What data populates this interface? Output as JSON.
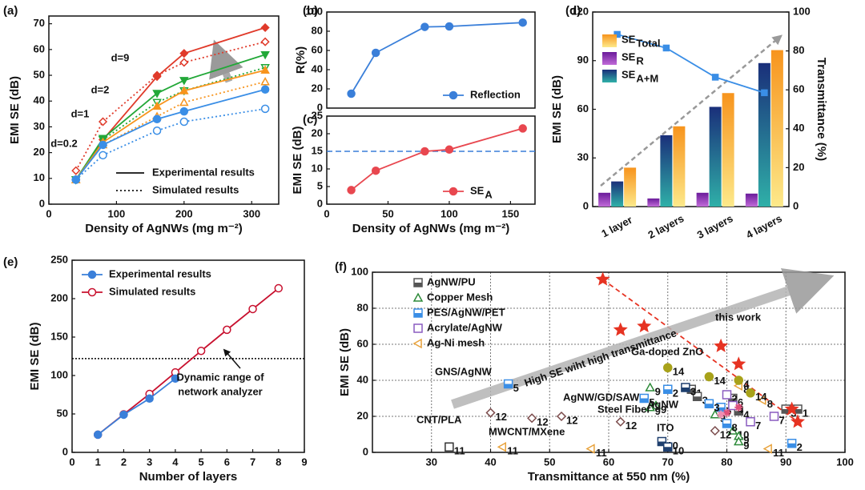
{
  "chart_data": [
    {
      "type": "line",
      "panel_label": "(a)",
      "x_label": "Density of AgNWs (mg m⁻²)",
      "y_label": "EMI SE (dB)",
      "x": [
        40,
        80,
        160,
        200,
        320
      ],
      "xlim": [
        0,
        340
      ],
      "xticks": [
        0,
        100,
        200,
        300
      ],
      "ylim": [
        0,
        73
      ],
      "yticks": [
        0,
        10,
        20,
        30,
        40,
        50,
        60,
        70
      ],
      "legend": [
        "Experimental results",
        "Simulated results"
      ],
      "series": [
        {
          "name": "d=0.2",
          "color": "#3a8ee6",
          "marker": "circle",
          "filled": true,
          "style": "solid",
          "values": [
            9.5,
            23,
            33,
            36,
            44.5
          ]
        },
        {
          "color": "#3a8ee6",
          "marker": "circle",
          "filled": false,
          "style": "dotted",
          "values": [
            9.5,
            19,
            28.5,
            32,
            37
          ]
        },
        {
          "name": "d=1",
          "color": "#f7941d",
          "marker": "triangle",
          "filled": true,
          "style": "solid",
          "values": [
            9.5,
            24,
            38,
            44,
            52
          ]
        },
        {
          "color": "#f7941d",
          "marker": "triangle",
          "filled": false,
          "style": "dotted",
          "values": [
            9.5,
            23,
            34,
            39.5,
            47.5
          ]
        },
        {
          "name": "d=2",
          "color": "#22a838",
          "marker": "triangle-down",
          "filled": true,
          "style": "solid",
          "values": [
            9.5,
            25.5,
            43,
            48,
            58
          ]
        },
        {
          "color": "#22a838",
          "marker": "triangle-down",
          "filled": false,
          "style": "dotted",
          "values": [
            9.5,
            25,
            39.5,
            44,
            53
          ]
        },
        {
          "name": "d=9",
          "color": "#e03a2a",
          "marker": "diamond",
          "filled": true,
          "style": "solid",
          "values": [
            9.5,
            25,
            49.5,
            58.5,
            68.5
          ]
        },
        {
          "color": "#e03a2a",
          "marker": "diamond",
          "filled": false,
          "style": "dotted",
          "values": [
            13,
            32,
            50,
            55,
            63
          ]
        }
      ]
    },
    {
      "type": "line",
      "panel_label": "(b)",
      "y_label": "R(%)",
      "x": [
        20,
        40,
        80,
        100,
        160
      ],
      "xlim": [
        0,
        170
      ],
      "ylim": [
        0,
        100
      ],
      "yticks": [
        0,
        20,
        40,
        60,
        80,
        100
      ],
      "legend_loc": "lower right",
      "series": [
        {
          "name": "Reflection",
          "color": "#3a7fd9",
          "marker": "circle",
          "filled": true,
          "style": "solid",
          "values": [
            15,
            57.5,
            84.5,
            85,
            89
          ]
        }
      ]
    },
    {
      "type": "line",
      "panel_label": "(c)",
      "x_label": "Density of AgNWs (mg m⁻²)",
      "y_label": "EMI SE (dB)",
      "x": [
        20,
        40,
        80,
        100,
        160
      ],
      "xlim": [
        0,
        170
      ],
      "xticks": [
        0,
        50,
        100,
        150
      ],
      "ylim": [
        0,
        25
      ],
      "yticks": [
        0,
        5,
        10,
        15,
        20,
        25
      ],
      "hline": 15,
      "hline_color": "#3a7fd9",
      "hline_style": "dashed",
      "legend_loc": "lower right",
      "series": [
        {
          "name": "SE",
          "name_sub": "A",
          "color": "#e8474f",
          "marker": "circle",
          "filled": true,
          "style": "solid",
          "values": [
            4,
            9.5,
            15,
            15.5,
            21.5
          ]
        }
      ]
    },
    {
      "type": "bar",
      "panel_label": "(d)",
      "y_label": "EMI SE (dB)",
      "y2_label": "Transmittance (%)",
      "y2_color": "#3a8ee6",
      "categories": [
        "1 layer",
        "2 layers",
        "3 layers",
        "4 layers"
      ],
      "ylim": [
        0,
        120
      ],
      "yticks": [
        0,
        30,
        60,
        90,
        120
      ],
      "y2lim": [
        0,
        100
      ],
      "y2ticks": [
        0,
        20,
        40,
        60,
        80,
        100
      ],
      "legend_loc": "upper left",
      "series": [
        {
          "name": "SE",
          "name_sub": "Total",
          "color": "#f7941d",
          "gradient": [
            "#f7941d",
            "#fde98a"
          ],
          "values": [
            24,
            49.5,
            70,
            96.5
          ]
        },
        {
          "name": "SE",
          "name_sub": "R",
          "color": "#7a1fa0",
          "gradient": [
            "#6a1b9a",
            "#c06ad8"
          ],
          "values": [
            8.5,
            5,
            8.5,
            8
          ]
        },
        {
          "name": "SE",
          "name_sub": "A+M",
          "color": "#1e4f9a",
          "gradient": [
            "#1a2f7a",
            "#2fb0a8"
          ],
          "values": [
            15.5,
            44,
            61.5,
            88.5
          ]
        },
        {
          "type": "line",
          "axis": "y2",
          "color": "#3a8ee6",
          "marker": "square",
          "values": [
            88.5,
            81.5,
            66.5,
            58.5
          ]
        }
      ]
    },
    {
      "type": "line",
      "panel_label": "(e)",
      "x_label": "Number of layers",
      "y_label": "EMI SE (dB)",
      "x": [
        1,
        2,
        3,
        4,
        5,
        6,
        7,
        8
      ],
      "xlim": [
        0,
        9
      ],
      "xticks": [
        0,
        1,
        2,
        3,
        4,
        5,
        6,
        7,
        8,
        9
      ],
      "ylim": [
        0,
        250
      ],
      "yticks": [
        0,
        50,
        100,
        150,
        200,
        250
      ],
      "hline": 122,
      "hline_color": "#000000",
      "hline_style": "dotted",
      "annotation": [
        "Dynamic range of",
        "network analyzer"
      ],
      "legend_loc": "upper left",
      "series": [
        {
          "name": "Experimental results",
          "color": "#3a7fd9",
          "marker": "circle",
          "filled": true,
          "style": "solid",
          "values": [
            23,
            49,
            70,
            96,
            null,
            null,
            null,
            null
          ]
        },
        {
          "name": "Simulated results",
          "color": "#c8102e",
          "marker": "circle",
          "filled": false,
          "style": "solid",
          "values": [
            23,
            49.5,
            76,
            104,
            132,
            159.5,
            186.5,
            213.5
          ]
        }
      ]
    },
    {
      "type": "scatter",
      "panel_label": "(f)",
      "x_label": "Transmittance at 550 nm (%)",
      "y_label": "EMI SE (dB)",
      "xlim": [
        20,
        100
      ],
      "xticks": [
        30,
        40,
        50,
        60,
        70,
        80,
        90,
        100
      ],
      "ylim": [
        0,
        100
      ],
      "yticks": [
        0,
        20,
        40,
        60,
        80,
        100
      ],
      "grid": true,
      "legend_loc": "upper left",
      "annotation": "High SE wiht high transmittance",
      "series": [
        {
          "name": "AgNW/PU",
          "in_legend": true,
          "color": "#555555",
          "marker": "halfsquare",
          "x": [
            74,
            75,
            81,
            82,
            90,
            92
          ],
          "values": [
            35,
            31,
            30,
            23,
            24,
            24
          ],
          "labels": [
            "1",
            "3",
            "6",
            "4",
            "3",
            "1"
          ]
        },
        {
          "name": "Copper Mesh",
          "in_legend": true,
          "color": "#2e8b3a",
          "marker": "triangle",
          "x": [
            67,
            68,
            78,
            81,
            82,
            82
          ],
          "values": [
            36,
            26,
            21,
            12,
            9,
            6
          ],
          "labels": [
            "9",
            "9",
            "9",
            "10",
            "9",
            "9"
          ]
        },
        {
          "name": "PES/AgNW/PET",
          "in_legend": true,
          "color": "#3a8ee6",
          "marker": "halfsquare",
          "x": [
            66,
            70,
            79,
            80,
            91,
            77
          ],
          "values": [
            30,
            35,
            25,
            16,
            5,
            27
          ],
          "labels": [
            "5",
            "2",
            "5",
            "8",
            "2",
            "3"
          ]
        },
        {
          "name": "Acrylate/AgNW",
          "in_legend": true,
          "color": "#8a5cc0",
          "marker": "square",
          "x": [
            80,
            81,
            84,
            88
          ],
          "values": [
            32,
            26,
            17,
            20
          ],
          "labels": [
            "2",
            "4",
            "7",
            "7"
          ]
        },
        {
          "name": "Ag-Ni mesh",
          "in_legend": true,
          "color": "#e8a23c",
          "marker": "triangle-left",
          "x": [
            42,
            57,
            87,
            82,
            86
          ],
          "values": [
            3,
            2,
            2,
            37,
            29
          ],
          "labels": [
            "11",
            "11",
            "11",
            "8",
            "8"
          ]
        },
        {
          "name": "Ga-doped ZnO",
          "in_legend": false,
          "color": "#a8a21a",
          "marker": "circle",
          "x": [
            70,
            77,
            82,
            84
          ],
          "values": [
            47,
            42,
            40,
            33
          ],
          "labels": [
            "14",
            "14",
            "4",
            "14"
          ]
        },
        {
          "name": "GNS/AgNW",
          "in_legend": false,
          "color": "#3a8ee6",
          "marker": "halfsquare",
          "x": [
            43
          ],
          "values": [
            38
          ],
          "labels": [
            "5"
          ]
        },
        {
          "name": "AgNW/GD/SAW",
          "in_legend": false,
          "color": "#1e3f6e",
          "marker": "halfsquare",
          "x": [
            69,
            70,
            73
          ],
          "values": [
            6,
            3,
            36
          ],
          "labels": [
            "10",
            "10",
            "3"
          ]
        },
        {
          "name": "Steel Fiber",
          "in_legend": false,
          "color": "#2e8b3a",
          "marker": "triangle",
          "x": [
            67
          ],
          "values": [
            25
          ],
          "labels": [
            "9"
          ]
        },
        {
          "name": "AgNW",
          "in_legend": false,
          "color": "#e0507a",
          "marker": "plus",
          "x": [
            80,
            82
          ],
          "values": [
            22,
            25
          ]
        },
        {
          "name": "ITO",
          "in_legend": false,
          "color": "#f08cb0",
          "marker": "plus",
          "x": [
            79
          ],
          "values": [
            21
          ]
        },
        {
          "name": "CNT/PLA",
          "in_legend": false,
          "color": "#7a4a4a",
          "marker": "diamond",
          "x": [
            40,
            47,
            52,
            62,
            78
          ],
          "values": [
            22,
            19,
            20,
            17,
            12
          ],
          "labels": [
            "12",
            "12",
            "12",
            "12",
            "12"
          ]
        },
        {
          "name": "MWCNT/MXene",
          "in_legend": false,
          "color": "#333333",
          "marker": "square",
          "x": [
            33
          ],
          "values": [
            3
          ],
          "labels": [
            "11"
          ]
        },
        {
          "name": "this work",
          "in_legend": false,
          "color": "#e63322",
          "marker": "star",
          "x": [
            59,
            62,
            66,
            79,
            82,
            91,
            92
          ],
          "values": [
            96,
            68,
            70,
            59,
            49,
            24,
            17
          ]
        }
      ]
    }
  ]
}
